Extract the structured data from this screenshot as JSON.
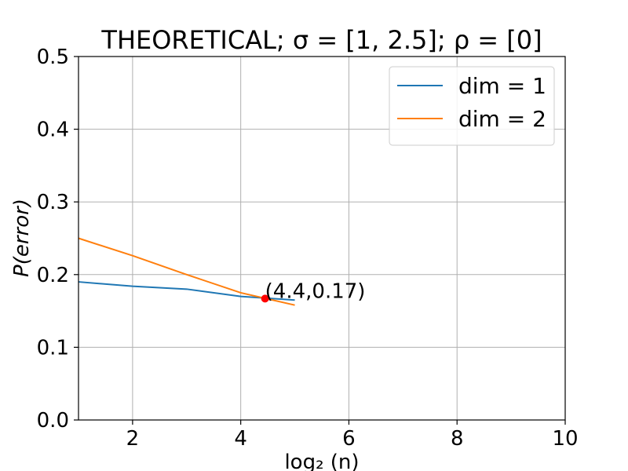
{
  "chart_data": {
    "type": "line",
    "title": "THEORETICAL;  σ = [1, 2.5];  ρ = [0]",
    "xlabel": "log₂ (n)",
    "ylabel": "P(error)",
    "xlim": [
      1,
      10
    ],
    "ylim": [
      0,
      0.5
    ],
    "xticks": [
      2,
      4,
      6,
      8,
      10
    ],
    "yticks": [
      0.0,
      0.1,
      0.2,
      0.3,
      0.4,
      0.5
    ],
    "grid": true,
    "legend_position": "top-right",
    "series": [
      {
        "name": "dim = 1",
        "color": "#1f77b4",
        "x": [
          1,
          2,
          3,
          4,
          5
        ],
        "y": [
          0.19,
          0.184,
          0.18,
          0.17,
          0.165
        ]
      },
      {
        "name": "dim = 2",
        "color": "#ff7f0e",
        "x": [
          1,
          2,
          3,
          4,
          5
        ],
        "y": [
          0.25,
          0.226,
          0.2,
          0.175,
          0.158
        ]
      }
    ],
    "annotation": {
      "text": "(4.4,0.17)",
      "x": 4.45,
      "y": 0.167,
      "marker_color": "#ff0000"
    }
  }
}
